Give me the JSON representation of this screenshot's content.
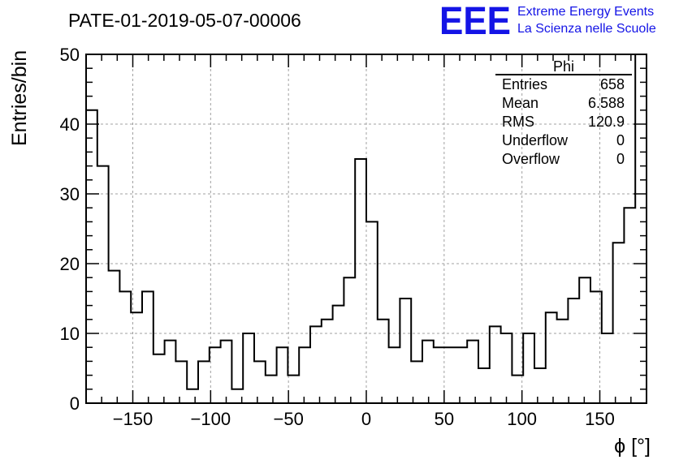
{
  "header": {
    "title": "PATE-01-2019-05-07-00006",
    "logo_text": "EEE",
    "logo_line1": "Extreme Energy Events",
    "logo_line2": "La Scienza nelle Scuole"
  },
  "stats": {
    "name": "Phi",
    "rows": [
      {
        "label": "Entries",
        "value": "658"
      },
      {
        "label": "Mean",
        "value": "6.588"
      },
      {
        "label": "RMS",
        "value": "120.9"
      },
      {
        "label": "Underflow",
        "value": "0"
      },
      {
        "label": "Overflow",
        "value": "0"
      }
    ]
  },
  "colors": {
    "histogram": "#000000",
    "grid": "#a0a0a0",
    "logo": "#1414e6"
  },
  "chart_data": {
    "type": "bar",
    "style": "step-histogram",
    "title": "PATE-01-2019-05-07-00006",
    "xlabel": "ϕ [°]",
    "ylabel": "Entries/bin",
    "xlim": [
      -180,
      180
    ],
    "ylim": [
      0,
      50
    ],
    "grid": true,
    "bin_width": 7.2,
    "xticks": [
      -150,
      -100,
      -50,
      0,
      50,
      100,
      150
    ],
    "yticks": [
      0,
      10,
      20,
      30,
      40,
      50
    ],
    "bin_edges_start": -180,
    "values": [
      42,
      34,
      19,
      16,
      13,
      16,
      7,
      9,
      6,
      2,
      6,
      8,
      9,
      2,
      10,
      6,
      4,
      8,
      4,
      8,
      11,
      12,
      14,
      18,
      35,
      26,
      12,
      8,
      15,
      6,
      9,
      8,
      8,
      8,
      9,
      5,
      11,
      10,
      4,
      10,
      5,
      13,
      12,
      15,
      18,
      16,
      10,
      23,
      28,
      50
    ],
    "stats_box": {
      "name": "Phi",
      "entries": 658,
      "mean": 6.588,
      "rms": 120.9,
      "underflow": 0,
      "overflow": 0
    }
  }
}
